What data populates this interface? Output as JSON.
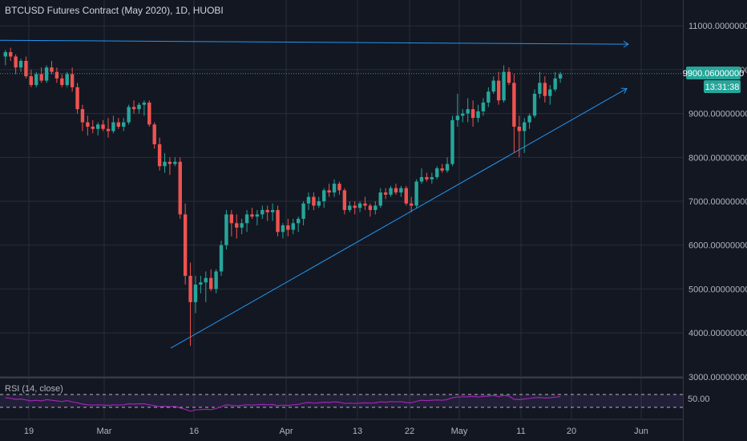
{
  "header": {
    "title": "BTCUSD Futures Contract (May 2020), 1D, HUOBI"
  },
  "price_badge": {
    "value": "9900.06000000",
    "countdown": "13:31:38"
  },
  "rsi": {
    "label": "RSI (14, close)",
    "level_label": "50.00"
  },
  "colors": {
    "background": "#131722",
    "up": "#26a69a",
    "down": "#ef5350",
    "trendline": "#2196f3",
    "rsi_line": "#9c27b0",
    "badge": "#26a69a"
  },
  "chart_data": [
    {
      "type": "candlestick",
      "title": "BTCUSD Futures Contract (May 2020), 1D, HUOBI",
      "yaxis_ticks": [
        "11000.00000000",
        "10000.00000000",
        "9000.00000000",
        "8000.00000000",
        "7000.00000000",
        "6000.00000000",
        "5000.00000000",
        "4000.00000000",
        "3000.00000000"
      ],
      "xaxis_ticks": [
        "19",
        "Mar",
        "16",
        "Apr",
        "13",
        "22",
        "May",
        "11",
        "20",
        "Jun"
      ],
      "ylim": [
        3000,
        11000
      ],
      "last_price": 9900.06,
      "candles": [
        [
          10300,
          10450,
          10100,
          10400
        ],
        [
          10400,
          10500,
          10200,
          10300
        ],
        [
          10300,
          10350,
          9900,
          10050
        ],
        [
          10050,
          10250,
          9950,
          10200
        ],
        [
          10200,
          10300,
          9800,
          9850
        ],
        [
          9850,
          10000,
          9600,
          9650
        ],
        [
          9650,
          9950,
          9600,
          9900
        ],
        [
          9900,
          10050,
          9700,
          9750
        ],
        [
          9750,
          10100,
          9700,
          10050
        ],
        [
          10050,
          10200,
          9900,
          9950
        ],
        [
          9950,
          10050,
          9700,
          9800
        ],
        [
          9800,
          9900,
          9600,
          9650
        ],
        [
          9650,
          9950,
          9600,
          9900
        ],
        [
          9900,
          10050,
          9500,
          9600
        ],
        [
          9600,
          9700,
          9000,
          9100
        ],
        [
          9100,
          9200,
          8600,
          8800
        ],
        [
          8800,
          8950,
          8500,
          8700
        ],
        [
          8700,
          8850,
          8550,
          8650
        ],
        [
          8650,
          8800,
          8500,
          8750
        ],
        [
          8750,
          8850,
          8600,
          8650
        ],
        [
          8650,
          8900,
          8450,
          8600
        ],
        [
          8600,
          8950,
          8550,
          8800
        ],
        [
          8800,
          8900,
          8650,
          8700
        ],
        [
          8700,
          8900,
          8600,
          8800
        ],
        [
          8800,
          9200,
          8750,
          9150
        ],
        [
          9150,
          9300,
          9000,
          9100
        ],
        [
          9100,
          9250,
          9000,
          9200
        ],
        [
          9200,
          9300,
          8950,
          9250
        ],
        [
          9250,
          9300,
          8700,
          8750
        ],
        [
          8750,
          8800,
          8200,
          8300
        ],
        [
          8300,
          8450,
          7700,
          7800
        ],
        [
          7800,
          8100,
          7650,
          7900
        ],
        [
          7900,
          8000,
          7600,
          7850
        ],
        [
          7850,
          8000,
          7800,
          7900
        ],
        [
          7900,
          8000,
          6600,
          6700
        ],
        [
          6700,
          6950,
          5100,
          5300
        ],
        [
          5300,
          5600,
          3700,
          4700
        ],
        [
          4700,
          5300,
          4450,
          5100
        ],
        [
          5100,
          5300,
          4900,
          5150
        ],
        [
          5150,
          5400,
          4700,
          5250
        ],
        [
          5250,
          5450,
          4950,
          5000
        ],
        [
          5000,
          5450,
          4900,
          5400
        ],
        [
          5400,
          6100,
          5300,
          6000
        ],
        [
          6000,
          6800,
          5900,
          6700
        ],
        [
          6700,
          6800,
          6200,
          6500
        ],
        [
          6500,
          6700,
          6150,
          6400
        ],
        [
          6400,
          6600,
          6250,
          6500
        ],
        [
          6500,
          6800,
          6300,
          6700
        ],
        [
          6700,
          6850,
          6600,
          6650
        ],
        [
          6650,
          6800,
          6450,
          6700
        ],
        [
          6700,
          6900,
          6600,
          6800
        ],
        [
          6800,
          6900,
          6550,
          6750
        ],
        [
          6750,
          6950,
          6550,
          6800
        ],
        [
          6800,
          6900,
          6200,
          6300
        ],
        [
          6300,
          6500,
          6150,
          6450
        ],
        [
          6450,
          6600,
          6200,
          6350
        ],
        [
          6350,
          6600,
          6250,
          6500
        ],
        [
          6500,
          6650,
          6300,
          6600
        ],
        [
          6600,
          7000,
          6450,
          6950
        ],
        [
          6950,
          7200,
          6800,
          7100
        ],
        [
          7100,
          7200,
          6800,
          6900
        ],
        [
          6900,
          7100,
          6850,
          7000
        ],
        [
          7000,
          7300,
          6850,
          7250
        ],
        [
          7250,
          7400,
          7100,
          7200
        ],
        [
          7200,
          7500,
          7100,
          7400
        ],
        [
          7400,
          7450,
          7150,
          7250
        ],
        [
          7250,
          7300,
          6700,
          6800
        ],
        [
          6800,
          7000,
          6750,
          6900
        ],
        [
          6900,
          7000,
          6700,
          6850
        ],
        [
          6850,
          7000,
          6750,
          6950
        ],
        [
          6950,
          7100,
          6800,
          6900
        ],
        [
          6900,
          6950,
          6650,
          6800
        ],
        [
          6800,
          7000,
          6700,
          6900
        ],
        [
          6900,
          7300,
          6850,
          7200
        ],
        [
          7200,
          7300,
          7050,
          7150
        ],
        [
          7150,
          7350,
          7100,
          7300
        ],
        [
          7300,
          7400,
          7150,
          7200
        ],
        [
          7200,
          7350,
          7100,
          7300
        ],
        [
          7300,
          7350,
          6900,
          6950
        ],
        [
          6950,
          7100,
          6750,
          6900
        ],
        [
          6900,
          7500,
          6850,
          7450
        ],
        [
          7450,
          7750,
          7400,
          7550
        ],
        [
          7550,
          7650,
          7450,
          7500
        ],
        [
          7500,
          7650,
          7400,
          7550
        ],
        [
          7550,
          7800,
          7500,
          7750
        ],
        [
          7750,
          7850,
          7650,
          7700
        ],
        [
          7700,
          8000,
          7650,
          7850
        ],
        [
          7850,
          8950,
          7800,
          8850
        ],
        [
          8850,
          9450,
          8700,
          8950
        ],
        [
          8950,
          9100,
          8800,
          9000
        ],
        [
          9000,
          9350,
          8800,
          9100
        ],
        [
          9100,
          9300,
          8700,
          8900
        ],
        [
          8900,
          9200,
          8800,
          9050
        ],
        [
          9050,
          9350,
          8950,
          9250
        ],
        [
          9250,
          9600,
          9150,
          9500
        ],
        [
          9500,
          9850,
          9450,
          9750
        ],
        [
          9750,
          9950,
          9200,
          9300
        ],
        [
          9300,
          10100,
          9250,
          9950
        ],
        [
          9950,
          10050,
          9650,
          9700
        ],
        [
          9700,
          9900,
          8100,
          8700
        ],
        [
          8700,
          8950,
          8000,
          8600
        ],
        [
          8600,
          8900,
          8100,
          8800
        ],
        [
          8800,
          9000,
          8650,
          8950
        ],
        [
          8950,
          9550,
          8900,
          9450
        ],
        [
          9450,
          9950,
          9350,
          9700
        ],
        [
          9700,
          9850,
          9250,
          9400
        ],
        [
          9400,
          9650,
          9200,
          9550
        ],
        [
          9550,
          9950,
          9500,
          9800
        ],
        [
          9800,
          9950,
          9700,
          9900
        ]
      ],
      "trendlines": [
        {
          "from": [
            0,
            10670
          ],
          "to": [
            115,
            10580
          ]
        },
        {
          "from": [
            29,
            3650
          ],
          "to": [
            115,
            9570
          ]
        }
      ]
    },
    {
      "type": "line",
      "title": "RSI (14, close)",
      "level": 50,
      "bands": [
        30,
        70
      ],
      "values": [
        60,
        58,
        55,
        56,
        53,
        50,
        52,
        50,
        54,
        52,
        50,
        48,
        51,
        47,
        44,
        40,
        38,
        37,
        38,
        37,
        36,
        38,
        37,
        38,
        41,
        40,
        41,
        41,
        38,
        35,
        32,
        33,
        32,
        33,
        28,
        24,
        18,
        22,
        23,
        24,
        23,
        26,
        32,
        38,
        36,
        35,
        36,
        38,
        37,
        38,
        39,
        38,
        39,
        35,
        37,
        36,
        38,
        39,
        43,
        45,
        43,
        44,
        46,
        45,
        47,
        46,
        42,
        43,
        42,
        43,
        44,
        43,
        44,
        47,
        46,
        48,
        47,
        48,
        45,
        44,
        49,
        52,
        51,
        52,
        53,
        52,
        54,
        60,
        62,
        63,
        63,
        64,
        62,
        64,
        65,
        67,
        63,
        67,
        65,
        55,
        54,
        56,
        58,
        60,
        61,
        59,
        60,
        62,
        63
      ]
    }
  ]
}
